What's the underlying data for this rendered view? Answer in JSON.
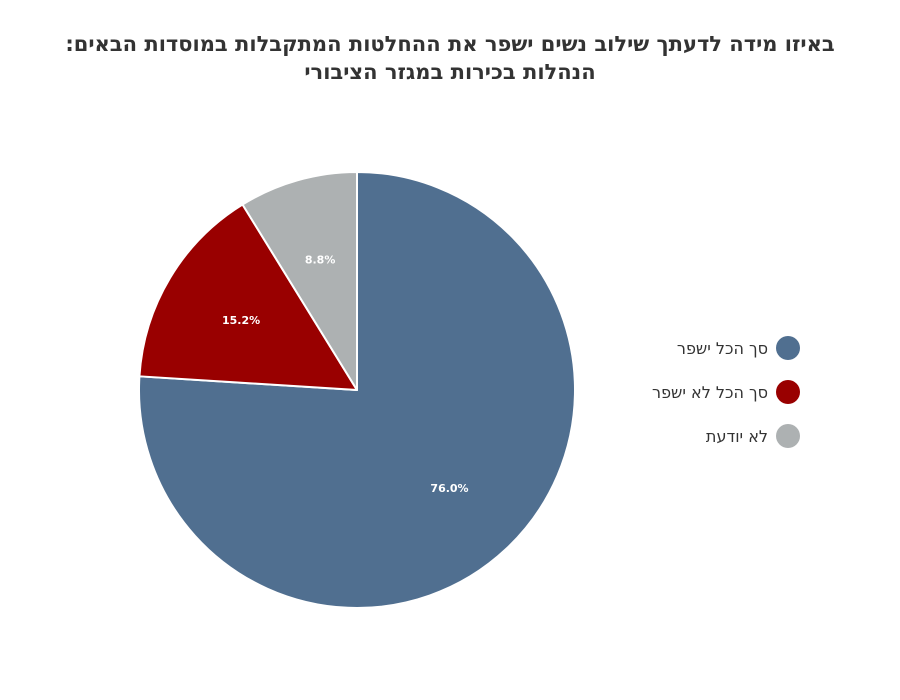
{
  "chart_data": {
    "type": "pie",
    "title_lines": [
      "באיזו מידה לדעתך שילוב נשים ישפר את ההחלטות המתקבלות במוסדות הבאים:",
      "הנהלות בכירות במגזר הציבורי"
    ],
    "slices": [
      {
        "label": "סך הכל ישפר",
        "value": 76.0,
        "value_label": "76.0%",
        "color": "#506f90"
      },
      {
        "label": "סך הכל לא ישפר",
        "value": 15.2,
        "value_label": "15.2%",
        "color": "#990000"
      },
      {
        "label": "לא יודעת",
        "value": 8.8,
        "value_label": "8.8%",
        "color": "#adb1b2"
      }
    ],
    "start_angle": "12 o'clock",
    "direction": "clockwise",
    "legend_position": "right"
  }
}
